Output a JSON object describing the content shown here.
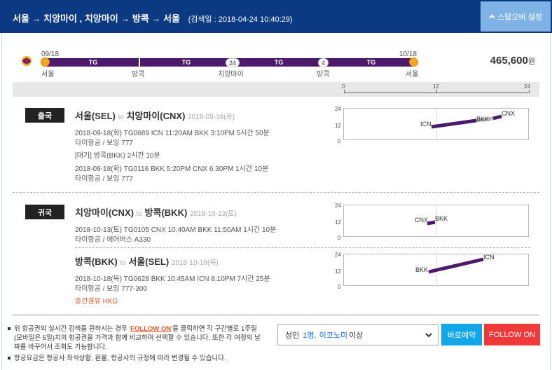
{
  "header": {
    "route": "서울 → 치앙마이 , 치앙마이 → 방콕 → 서울",
    "searched": "(검색일 : 2018-04-24 10:40:29)",
    "stopover_button": "스탑오버 설정"
  },
  "timeline": {
    "start_date": "09/18",
    "end_date": "10/18",
    "segments": [
      "TG",
      "TG",
      "TG",
      "TG"
    ],
    "stay_hours": [
      "24",
      "4"
    ],
    "cities": [
      "서울",
      "방콕",
      "치앙마이",
      "방콕",
      "서울"
    ],
    "price": "465,600",
    "currency": "원"
  },
  "scale": {
    "labels": [
      "0",
      "12",
      "24"
    ]
  },
  "outbound": {
    "badge": "출국",
    "title_from": "서울(SEL)",
    "to_word": "to",
    "title_to": "치앙마이(CNX)",
    "title_date": "2018-09-18(화)",
    "leg1_line": "2018-09-18(화)   TG0689   ICN 11:20AM BKK 3:10PM   5시간 50분",
    "leg1_aircraft": "타이항공 / 보잉 777",
    "layover": "[대기] 방콕(BKK)   2시간 10분",
    "leg2_line": "2018-09-18(화)   TG0116   BKK 5:20PM CNX 6:30PM   1시간 10분",
    "leg2_aircraft": "타이항공 / 보잉 777"
  },
  "inbound": {
    "badge": "귀국",
    "seg1_from": "치앙마이(CNX)",
    "to_word": "to",
    "seg1_to": "방콕(BKK)",
    "seg1_date": "2018-10-13(토)",
    "seg1_line": "2018-10-13(토)   TG0105   CNX 10:40AM BKK 11:50AM   1시간 10분",
    "seg1_aircraft": "타이항공 / 에어버스 A330",
    "seg2_from": "방콕(BKK)",
    "seg2_to": "서울(SEL)",
    "seg2_date": "2018-10-18(목)",
    "seg2_line": "2018-10-18(목)   TG0628   BKK 10:45AM ICN 8:10PM   7시간 25분",
    "seg2_aircraft": "타이항공 / 보잉 777-300",
    "seg2_stopover": "중간경유 HKG"
  },
  "charts": {
    "y_labels": [
      "24",
      "12",
      "0"
    ],
    "out_codes": [
      "ICN",
      "BKK",
      "CNX"
    ],
    "in1_codes": [
      "CNX",
      "BKK"
    ],
    "in2_codes": [
      "BKK",
      "ICN"
    ],
    "bar_color": "#4d1a6b"
  },
  "footer": {
    "note1_pre": "위 항공권의 실시간 검색을 원하시는 경우 '",
    "note1_hl": "FOLLOW ON",
    "note1_post": "'을 클릭하면 각 구간별로 1주일(모바일은 5일)치의 항공권을 가격과 함께 비교하며 선택할 수 있습니다. 또한 각 여정의 날짜를 바꾸어서 조회도 가능합니다.",
    "note2": "항공요금은 항공사 좌석상황, 환율, 항공사의 규정에 따라 변경될 수 있습니다.",
    "select_pre": "성인",
    "select_count": "1명,",
    "select_class": "이코노미",
    "select_post": "이상",
    "book_button": "바로예약",
    "follow_button": "FOLLOW ON"
  }
}
